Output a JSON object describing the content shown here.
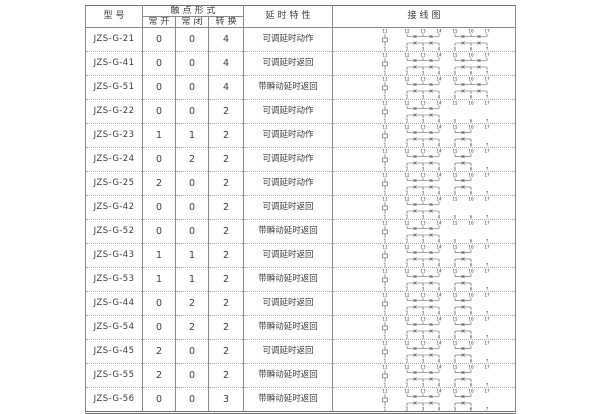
{
  "table": {
    "header": {
      "model": "型号",
      "contact_form": "触点形式",
      "contact_no": "常开",
      "contact_nc": "常闭",
      "contact_co": "转换",
      "delay": "延时特性",
      "wiring": "接线图"
    },
    "rows": [
      {
        "model": "JZS-G-21",
        "no": "0",
        "nc": "0",
        "co": "4",
        "delay": "可调延时动作",
        "diagram": "two-full"
      },
      {
        "model": "JZS-G-41",
        "no": "0",
        "nc": "0",
        "co": "4",
        "delay": "可调延时返回",
        "diagram": "two-full"
      },
      {
        "model": "JZS-G-51",
        "no": "0",
        "nc": "0",
        "co": "4",
        "delay": "带瞬动延时返回",
        "diagram": "two-full"
      },
      {
        "model": "JZS-G-22",
        "no": "0",
        "nc": "0",
        "co": "2",
        "delay": "可调延时动作",
        "diagram": "one-full-plain"
      },
      {
        "model": "JZS-G-23",
        "no": "1",
        "nc": "1",
        "co": "2",
        "delay": "可调延时动作",
        "diagram": "one-full-half"
      },
      {
        "model": "JZS-G-24",
        "no": "0",
        "nc": "2",
        "co": "2",
        "delay": "可调延时动作",
        "diagram": "one-full-half"
      },
      {
        "model": "JZS-G-25",
        "no": "2",
        "nc": "0",
        "co": "2",
        "delay": "可调延时动作",
        "diagram": "one-full-half"
      },
      {
        "model": "JZS-G-42",
        "no": "0",
        "nc": "0",
        "co": "2",
        "delay": "可调延时返回",
        "diagram": "one-full-plain"
      },
      {
        "model": "JZS-G-52",
        "no": "0",
        "nc": "0",
        "co": "2",
        "delay": "带瞬动延时返回",
        "diagram": "one-full-plain"
      },
      {
        "model": "JZS-G-43",
        "no": "1",
        "nc": "1",
        "co": "2",
        "delay": "可调延时返回",
        "diagram": "one-full-half"
      },
      {
        "model": "JZS-G-53",
        "no": "1",
        "nc": "1",
        "co": "2",
        "delay": "带瞬动延时返回",
        "diagram": "one-full-half"
      },
      {
        "model": "JZS-G-44",
        "no": "0",
        "nc": "2",
        "co": "2",
        "delay": "可调延时返回",
        "diagram": "one-full-half"
      },
      {
        "model": "JZS-G-54",
        "no": "0",
        "nc": "2",
        "co": "2",
        "delay": "带瞬动延时返回",
        "diagram": "one-full-half"
      },
      {
        "model": "JZS-G-45",
        "no": "2",
        "nc": "0",
        "co": "2",
        "delay": "可调延时返回",
        "diagram": "one-full-half"
      },
      {
        "model": "JZS-G-55",
        "no": "2",
        "nc": "0",
        "co": "2",
        "delay": "带瞬动延时返回",
        "diagram": "one-full-half"
      },
      {
        "model": "JZS-G-56",
        "no": "0",
        "nc": "0",
        "co": "3",
        "delay": "带瞬动延时返回",
        "diagram": "one-full-half"
      }
    ],
    "diagram_labels": {
      "coil_top": "11",
      "coil_bottom": "1",
      "g1_top": [
        "12",
        "13",
        "14"
      ],
      "g1_bottom": [
        "2",
        "3",
        "4"
      ],
      "g2_top": [
        "15",
        "16",
        "17"
      ],
      "g2_bottom": [
        "5",
        "6",
        "7"
      ]
    },
    "colors": {
      "border": "#6f6f6f",
      "grid": "#8a8a8a",
      "dotted": "#a8a8a8",
      "text": "#3c3c3c",
      "diagram": "#555555"
    }
  }
}
